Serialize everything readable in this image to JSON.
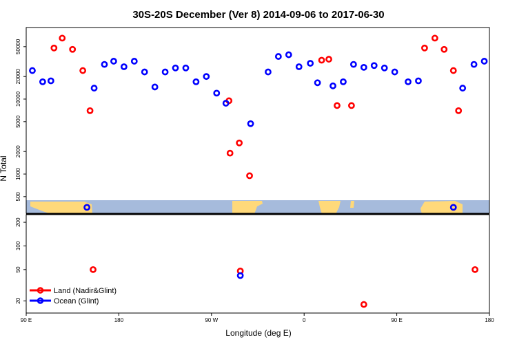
{
  "chart_data": {
    "type": "scatter",
    "title": "30S-20S December (Ver 8)   2014-09-06 to 2017-06-30",
    "xlabel": "Longitude (deg E)",
    "ylabel": "N Total",
    "x_tick_labels": [
      "90 E",
      "180",
      "90 W",
      "0",
      "90 E",
      "180"
    ],
    "x_tick_values": [
      90,
      180,
      270,
      360,
      450,
      540
    ],
    "xlim": [
      90,
      540
    ],
    "upper_panel": {
      "scale": "log",
      "ylim": [
        300,
        90000
      ],
      "y_ticks": [
        500,
        1000,
        2000,
        5000,
        10000,
        20000,
        50000
      ],
      "y_tick_labels": [
        "500",
        "1000",
        "2000",
        "5000",
        "10000",
        "20000",
        "50000"
      ]
    },
    "lower_panel": {
      "scale": "log",
      "ylim": [
        14,
        250
      ],
      "y_ticks": [
        20,
        50,
        100,
        200
      ],
      "y_tick_labels": [
        "20",
        "50",
        "100",
        "200"
      ]
    },
    "legend": {
      "position": "bottom-left",
      "entries": [
        {
          "name": "Land (Nadir&Glint)",
          "color": "#ff0000"
        },
        {
          "name": "Ocean (Glint)",
          "color": "#0000ff"
        }
      ]
    },
    "series": [
      {
        "name": "Land (Nadir&Glint)",
        "color": "#ff0000",
        "points": [
          [
            117,
            48000
          ],
          [
            125,
            65000
          ],
          [
            135,
            46000
          ],
          [
            145,
            24000
          ],
          [
            152,
            7000
          ],
          [
            155,
            50
          ],
          [
            287,
            9500
          ],
          [
            288,
            1900
          ],
          [
            297,
            2600
          ],
          [
            298,
            48
          ],
          [
            307,
            950
          ],
          [
            377,
            33000
          ],
          [
            384,
            34000
          ],
          [
            392,
            8200
          ],
          [
            406,
            8200
          ],
          [
            418,
            18
          ],
          [
            477,
            48000
          ],
          [
            487,
            65000
          ],
          [
            496,
            46000
          ],
          [
            505,
            24000
          ],
          [
            510,
            7000
          ],
          [
            526,
            50
          ]
        ]
      },
      {
        "name": "Ocean (Glint)",
        "color": "#0000ff",
        "points": [
          [
            96,
            24000
          ],
          [
            106,
            17000
          ],
          [
            114,
            17500
          ],
          [
            149,
            360
          ],
          [
            156,
            14000
          ],
          [
            166,
            29000
          ],
          [
            175,
            32000
          ],
          [
            185,
            27000
          ],
          [
            195,
            32000
          ],
          [
            205,
            23000
          ],
          [
            215,
            14500
          ],
          [
            225,
            23000
          ],
          [
            235,
            26000
          ],
          [
            245,
            26000
          ],
          [
            255,
            17000
          ],
          [
            265,
            20000
          ],
          [
            275,
            12000
          ],
          [
            284,
            8800
          ],
          [
            298,
            42
          ],
          [
            308,
            4700
          ],
          [
            325,
            23000
          ],
          [
            335,
            37000
          ],
          [
            345,
            39000
          ],
          [
            355,
            27000
          ],
          [
            366,
            30000
          ],
          [
            373,
            16500
          ],
          [
            388,
            15000
          ],
          [
            398,
            17000
          ],
          [
            408,
            29000
          ],
          [
            418,
            26500
          ],
          [
            428,
            28000
          ],
          [
            438,
            26000
          ],
          [
            448,
            23000
          ],
          [
            461,
            17000
          ],
          [
            471,
            17500
          ],
          [
            505,
            360
          ],
          [
            514,
            14000
          ],
          [
            525,
            29000
          ],
          [
            535,
            32000
          ]
        ]
      }
    ]
  }
}
